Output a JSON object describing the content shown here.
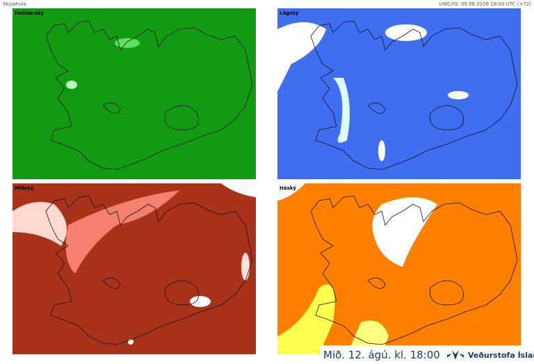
{
  "header": {
    "title": "Skyjahula",
    "run": "UWC/IG: 09.08.2026 18:00 UTC (+72)"
  },
  "panels": [
    {
      "label": "Heildarský"
    },
    {
      "label": "Lágský"
    },
    {
      "label": "Miðský"
    },
    {
      "label": "Háský"
    }
  ],
  "footer": {
    "time": "Mið. 12. ágú. kl. 18:00",
    "brand": "Veðurstofa Íslands"
  }
}
